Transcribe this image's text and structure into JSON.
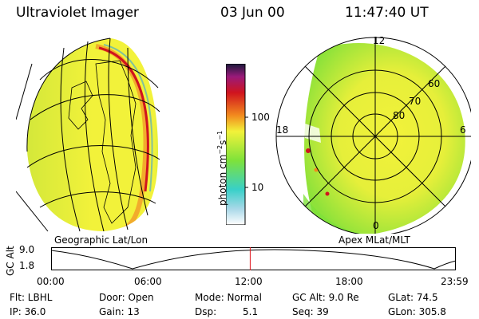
{
  "header": {
    "instrument": "Ultraviolet Imager",
    "date": "03 Jun 00",
    "time": "11:47:40 UT"
  },
  "colors": {
    "yellow": "#f2f23a",
    "green": "#7ee23a",
    "cyan": "#38d0c8",
    "orange": "#f28a1e",
    "red": "#d0141e",
    "darkred": "#6a0012"
  },
  "left_panel": {
    "label": "Geographic Lat/Lon"
  },
  "colorbar": {
    "unit_label": "photon cm",
    "unit_sup1": "−2",
    "unit_mid": "s",
    "unit_sup2": "−1",
    "ticks": [
      {
        "value": 100,
        "label": "100"
      },
      {
        "value": 10,
        "label": "10"
      }
    ]
  },
  "polar_panel": {
    "label": "Apex MLat/MLT",
    "mlt_labels": {
      "top": "12",
      "left": "18",
      "right": "6",
      "bottom": "0"
    },
    "lat_labels": [
      "60",
      "70",
      "80"
    ]
  },
  "altitude_track": {
    "axis_title": "GC Alt",
    "y_ticks": [
      "9.0",
      "1.8"
    ],
    "x_ticks": [
      "00:00",
      "06:00",
      "12:00",
      "18:00",
      "23:59"
    ],
    "current_time_fraction": 0.492
  },
  "info": {
    "filter": "Flt: LBHL",
    "door": "Door: Open",
    "mode": "Mode: Normal",
    "gc_alt": "GC Alt: 9.0 Re",
    "glat": "GLat:  74.5",
    "ip": "IP: 36.0",
    "gain": "Gain: 13",
    "dsp_label": "Dsp:",
    "dsp_value": "5.1",
    "seq": "Seq: 39",
    "glon": "GLon: 305.8"
  }
}
